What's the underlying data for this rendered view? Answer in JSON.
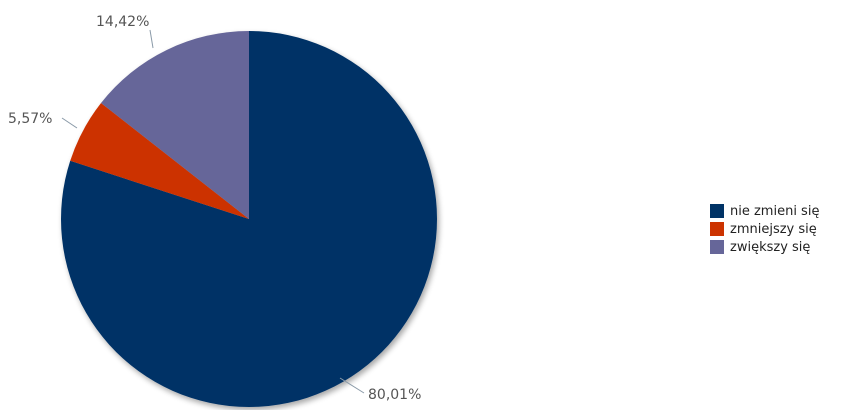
{
  "chart_data": {
    "type": "pie",
    "slices": [
      {
        "label": "nie zmieni się",
        "value": 80.01,
        "value_label": "80,01%",
        "color": "#003366"
      },
      {
        "label": "zmniejszy się",
        "value": 5.57,
        "value_label": "5,57%",
        "color": "#CC3300"
      },
      {
        "label": "zwiększy się",
        "value": 14.42,
        "value_label": "14,42%",
        "color": "#666699"
      }
    ],
    "legend_position": "right",
    "start_angle": "12 o'clock",
    "direction": "clockwise"
  }
}
